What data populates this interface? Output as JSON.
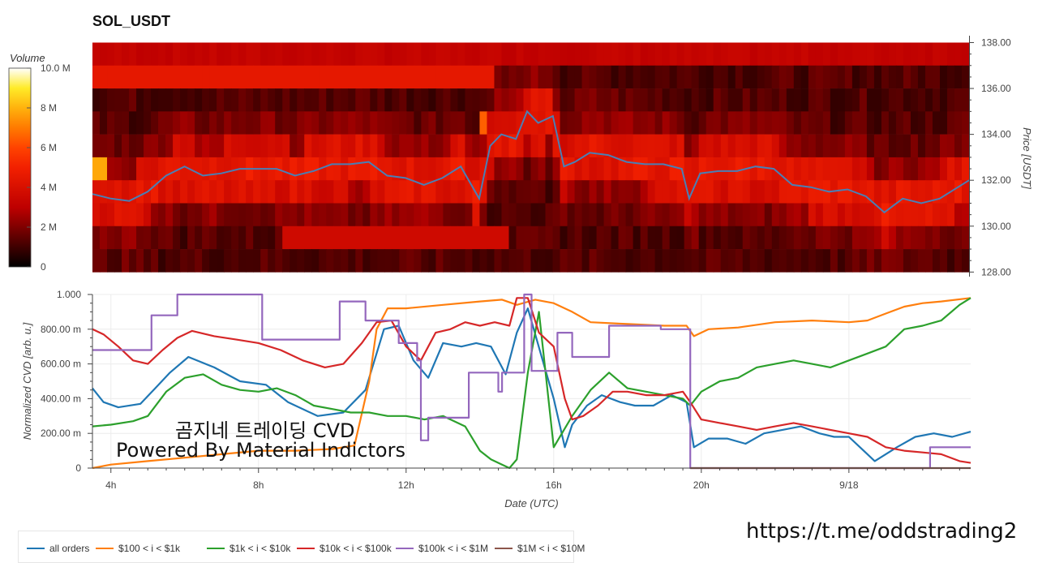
{
  "title": "SOL_USDT",
  "overlay_text": [
    "곰지네 트레이딩 CVD",
    "Powered By Material Indictors"
  ],
  "link_text": "https://t.me/oddstrading2",
  "colors": {
    "all_orders": "#1f77b4",
    "s100_1k": "#ff7f0e",
    "s1k_10k": "#2ca02c",
    "s10k_100k": "#d62728",
    "s100k_1m": "#9467bd",
    "s1m_10m": "#8c564b",
    "price_line": "#4a7fb5"
  },
  "chart_data": [
    {
      "type": "heatmap",
      "title": "SOL_USDT",
      "ylabel": "Price [USDT]",
      "ylim": [
        127.8,
        138.3
      ],
      "y_ticks": [
        "138.00",
        "136.00",
        "134.00",
        "132.00",
        "130.00",
        "128.00"
      ],
      "y_tick_values": [
        138,
        136,
        134,
        132,
        130,
        128
      ],
      "colorbar": {
        "label": "Volume",
        "ticks": [
          "10.0 M",
          "8 M",
          "6 M",
          "4 M",
          "2 M",
          "0"
        ],
        "tick_values": [
          10,
          8,
          6,
          4,
          2,
          0
        ],
        "range": [
          0,
          10
        ]
      },
      "price_bands": [
        137.5,
        136.5,
        135.5,
        134.5,
        133.5,
        132.5,
        131.5,
        130.5,
        129.5,
        128.5
      ],
      "price_series": {
        "name": "price",
        "x": [
          3.5,
          4.0,
          4.5,
          5.0,
          5.5,
          6.0,
          6.5,
          7.0,
          7.5,
          8.0,
          8.5,
          9.0,
          9.5,
          10.0,
          10.5,
          11.0,
          11.5,
          12.0,
          12.5,
          13.0,
          13.5,
          14.0,
          14.3,
          14.6,
          15.0,
          15.3,
          15.6,
          16.0,
          16.3,
          16.6,
          17.0,
          17.5,
          18.0,
          18.5,
          19.0,
          19.5,
          19.7,
          20.0,
          20.5,
          21.0,
          21.5,
          22.0,
          22.5,
          23.0,
          23.5,
          24.0,
          24.5,
          25.0,
          25.5,
          26.0,
          26.5,
          27.3
        ],
        "y": [
          131.4,
          131.2,
          131.1,
          131.5,
          132.2,
          132.6,
          132.2,
          132.3,
          132.5,
          132.5,
          132.5,
          132.2,
          132.4,
          132.7,
          132.7,
          132.8,
          132.2,
          132.1,
          131.8,
          132.1,
          132.6,
          131.2,
          133.5,
          134.0,
          133.8,
          135.0,
          134.5,
          134.8,
          132.6,
          132.8,
          133.2,
          133.1,
          132.8,
          132.7,
          132.7,
          132.5,
          131.2,
          132.3,
          132.4,
          132.4,
          132.6,
          132.5,
          131.8,
          131.7,
          131.5,
          131.6,
          131.3,
          130.6,
          131.2,
          131.0,
          131.2,
          132.0
        ]
      }
    },
    {
      "type": "line",
      "xlabel": "Date (UTC)",
      "ylabel": "Normalized CVD [arb. u.]",
      "xlim": [
        3.5,
        27.3
      ],
      "ylim": [
        0,
        1
      ],
      "x_ticks": [
        "4h",
        "8h",
        "12h",
        "16h",
        "20h",
        "9/18"
      ],
      "x_tick_values": [
        4,
        8,
        12,
        16,
        20,
        24
      ],
      "y_ticks": [
        "1.000",
        "800.00 m",
        "600.00 m",
        "400.00 m",
        "200.00 m",
        "0"
      ],
      "y_tick_values": [
        1.0,
        0.8,
        0.6,
        0.4,
        0.2,
        0
      ],
      "series": [
        {
          "name": "all orders",
          "x": [
            3.5,
            3.8,
            4.2,
            4.8,
            5.2,
            5.6,
            6.1,
            6.8,
            7.5,
            8.2,
            8.8,
            9.6,
            10.3,
            10.9,
            11.4,
            11.8,
            12.2,
            12.6,
            13.0,
            13.5,
            13.9,
            14.3,
            14.7,
            15.0,
            15.3,
            15.7,
            16.0,
            16.3,
            16.5,
            16.9,
            17.3,
            17.8,
            18.2,
            18.7,
            19.2,
            19.6,
            19.8,
            20.2,
            20.7,
            21.2,
            21.7,
            22.2,
            22.7,
            23.2,
            23.6,
            24.0,
            24.3,
            24.7,
            25.3,
            25.8,
            26.3,
            26.8,
            27.3
          ],
          "y": [
            0.46,
            0.38,
            0.35,
            0.37,
            0.46,
            0.55,
            0.64,
            0.58,
            0.5,
            0.48,
            0.38,
            0.3,
            0.32,
            0.45,
            0.8,
            0.82,
            0.62,
            0.52,
            0.72,
            0.7,
            0.72,
            0.7,
            0.54,
            0.78,
            0.92,
            0.62,
            0.4,
            0.12,
            0.25,
            0.36,
            0.42,
            0.38,
            0.36,
            0.36,
            0.42,
            0.38,
            0.12,
            0.17,
            0.17,
            0.14,
            0.2,
            0.22,
            0.24,
            0.2,
            0.18,
            0.18,
            0.12,
            0.04,
            0.12,
            0.18,
            0.2,
            0.18,
            0.21
          ]
        },
        {
          "name": "$100 < i < $1k",
          "x": [
            3.5,
            4.0,
            5.0,
            6.0,
            7.0,
            8.0,
            9.0,
            10.0,
            10.6,
            11.0,
            11.2,
            11.5,
            12.0,
            13.0,
            14.0,
            14.6,
            15.0,
            15.5,
            16.0,
            16.5,
            17.0,
            18.0,
            19.0,
            19.6,
            19.8,
            20.2,
            21.0,
            22.0,
            23.0,
            24.0,
            24.5,
            25.0,
            25.5,
            26.0,
            26.5,
            27.3
          ],
          "y": [
            0.0,
            0.02,
            0.04,
            0.06,
            0.08,
            0.1,
            0.1,
            0.11,
            0.13,
            0.5,
            0.8,
            0.92,
            0.92,
            0.94,
            0.96,
            0.97,
            0.94,
            0.97,
            0.95,
            0.9,
            0.84,
            0.83,
            0.82,
            0.82,
            0.76,
            0.8,
            0.81,
            0.84,
            0.85,
            0.84,
            0.85,
            0.89,
            0.93,
            0.95,
            0.96,
            0.98
          ]
        },
        {
          "name": "$1k < i < $10k",
          "x": [
            3.5,
            4.0,
            4.6,
            5.0,
            5.5,
            6.0,
            6.5,
            7.0,
            7.5,
            8.0,
            8.5,
            9.0,
            9.5,
            10.0,
            10.5,
            11.0,
            11.5,
            12.0,
            12.5,
            13.0,
            13.6,
            14.0,
            14.3,
            14.6,
            14.8,
            15.0,
            15.3,
            15.6,
            16.0,
            16.5,
            17.0,
            17.5,
            18.0,
            18.5,
            19.0,
            19.5,
            19.7,
            20.0,
            20.5,
            21.0,
            21.5,
            22.0,
            22.5,
            23.0,
            23.5,
            24.0,
            24.5,
            25.0,
            25.5,
            26.0,
            26.5,
            27.0,
            27.3
          ],
          "y": [
            0.24,
            0.25,
            0.27,
            0.3,
            0.44,
            0.52,
            0.54,
            0.48,
            0.45,
            0.44,
            0.46,
            0.42,
            0.36,
            0.34,
            0.32,
            0.32,
            0.3,
            0.3,
            0.28,
            0.3,
            0.24,
            0.1,
            0.05,
            0.02,
            0.0,
            0.05,
            0.55,
            0.9,
            0.12,
            0.3,
            0.45,
            0.55,
            0.46,
            0.44,
            0.42,
            0.4,
            0.36,
            0.44,
            0.5,
            0.52,
            0.58,
            0.6,
            0.62,
            0.6,
            0.58,
            0.62,
            0.66,
            0.7,
            0.8,
            0.82,
            0.85,
            0.94,
            0.98
          ]
        },
        {
          "name": "$10k < i < $100k",
          "x": [
            3.5,
            3.8,
            4.2,
            4.6,
            5.0,
            5.4,
            5.8,
            6.2,
            6.8,
            7.4,
            8.0,
            8.6,
            9.2,
            9.8,
            10.3,
            10.8,
            11.2,
            11.6,
            12.0,
            12.4,
            12.8,
            13.2,
            13.6,
            14.0,
            14.4,
            14.8,
            15.0,
            15.3,
            15.6,
            16.0,
            16.3,
            16.5,
            16.8,
            17.2,
            17.6,
            18.0,
            18.5,
            19.0,
            19.5,
            19.7,
            20.0,
            20.5,
            21.0,
            21.5,
            22.0,
            22.5,
            23.0,
            23.5,
            24.0,
            24.5,
            25.0,
            25.5,
            26.0,
            26.5,
            27.0,
            27.3
          ],
          "y": [
            0.8,
            0.77,
            0.7,
            0.62,
            0.6,
            0.68,
            0.75,
            0.79,
            0.76,
            0.74,
            0.72,
            0.68,
            0.62,
            0.58,
            0.6,
            0.72,
            0.84,
            0.85,
            0.7,
            0.62,
            0.78,
            0.8,
            0.84,
            0.82,
            0.84,
            0.82,
            0.98,
            0.98,
            0.78,
            0.7,
            0.4,
            0.28,
            0.3,
            0.36,
            0.44,
            0.44,
            0.42,
            0.42,
            0.44,
            0.38,
            0.28,
            0.26,
            0.24,
            0.22,
            0.24,
            0.26,
            0.24,
            0.22,
            0.2,
            0.18,
            0.12,
            0.1,
            0.09,
            0.08,
            0.04,
            0.03
          ]
        },
        {
          "name": "$100k < i < $1M",
          "x": [
            3.5,
            5.1,
            5.1,
            5.8,
            5.8,
            8.1,
            8.1,
            10.2,
            10.2,
            10.9,
            10.9,
            11.8,
            11.8,
            12.3,
            12.3,
            12.4,
            12.4,
            12.6,
            12.6,
            13.7,
            13.7,
            14.5,
            14.5,
            14.6,
            14.6,
            15.2,
            15.2,
            15.4,
            15.4,
            16.1,
            16.1,
            16.5,
            16.5,
            17.5,
            17.5,
            18.9,
            18.9,
            19.7,
            19.7,
            26.2,
            26.2,
            27.3
          ],
          "y": [
            0.68,
            0.68,
            0.88,
            0.88,
            1.0,
            1.0,
            0.74,
            0.74,
            0.96,
            0.96,
            0.85,
            0.85,
            0.72,
            0.72,
            0.62,
            0.62,
            0.16,
            0.16,
            0.29,
            0.29,
            0.55,
            0.55,
            0.44,
            0.44,
            0.55,
            0.55,
            1.0,
            1.0,
            0.56,
            0.56,
            0.78,
            0.78,
            0.64,
            0.64,
            0.82,
            0.82,
            0.8,
            0.8,
            0.0,
            0.0,
            0.12,
            0.12
          ]
        },
        {
          "name": "$1M < i < $10M",
          "x": [
            19.7,
            27.3
          ],
          "y": [
            0.0,
            0.0
          ]
        }
      ]
    }
  ]
}
